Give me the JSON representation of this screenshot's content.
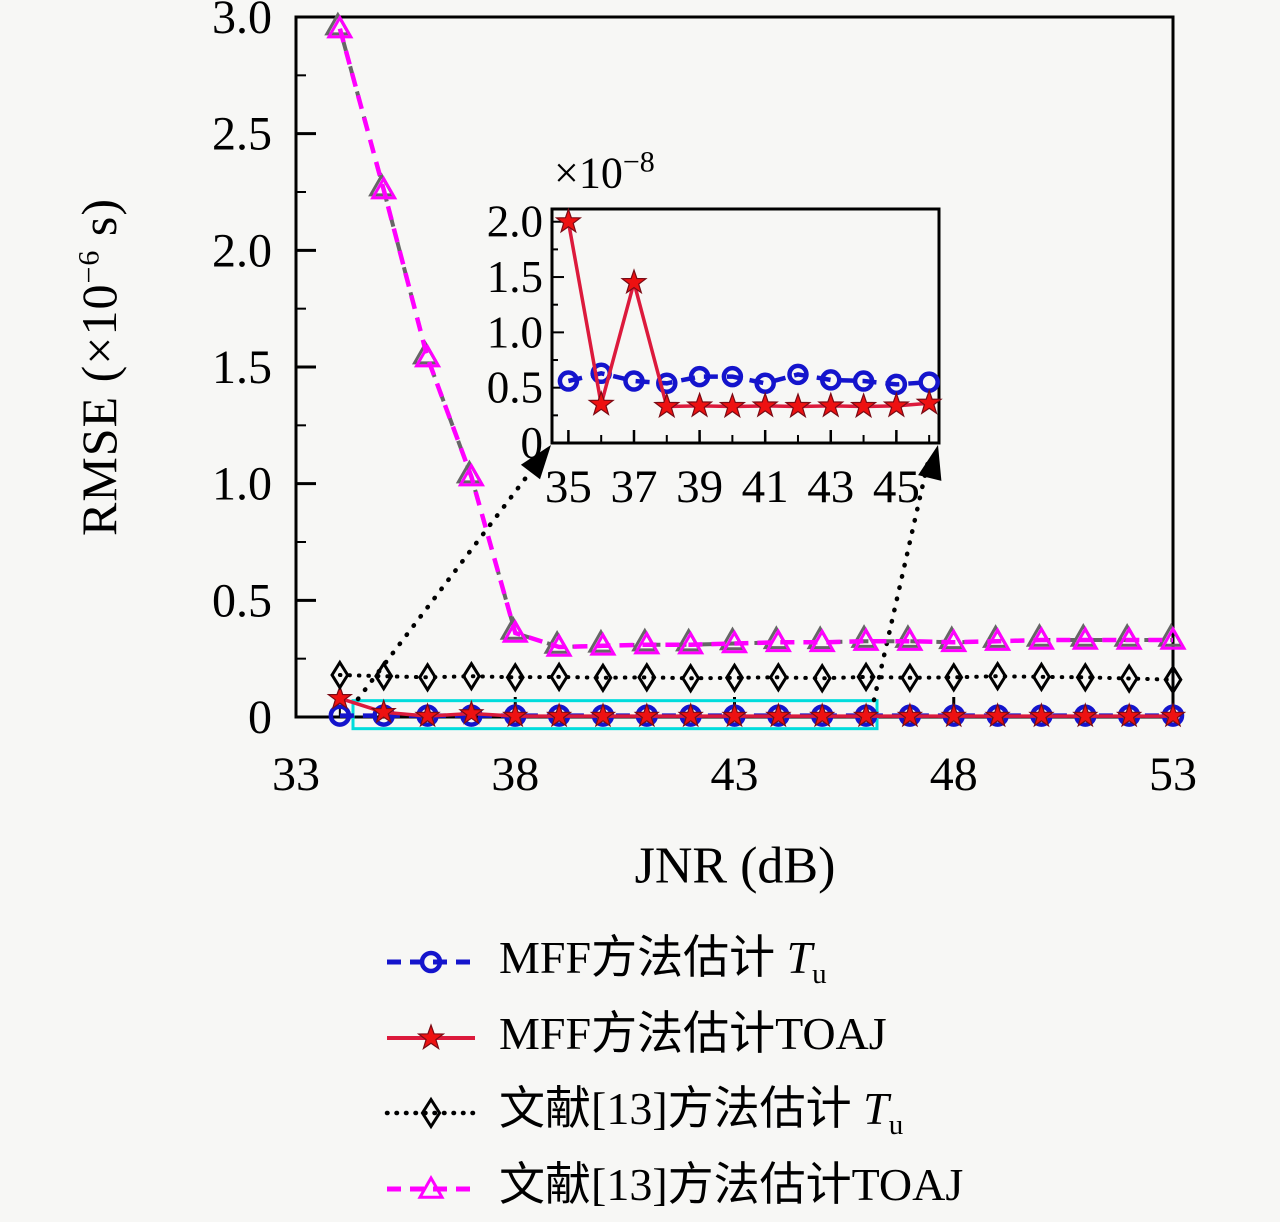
{
  "figure": {
    "background": "#f7f7f5",
    "axis_color": "#000000"
  },
  "chart_data": {
    "type": "line",
    "title": "",
    "xlabel": "JNR (dB)",
    "ylabel": {
      "pre": "RMSE (×10",
      "exp": "−6",
      "post": " s)"
    },
    "xlim": [
      33,
      53
    ],
    "ylim": [
      0,
      3
    ],
    "grid": "off",
    "x_ticks": {
      "values": [
        33,
        38,
        43,
        48,
        53
      ],
      "labels": [
        "33",
        "38",
        "43",
        "48",
        "53"
      ]
    },
    "y_ticks": {
      "values": [
        0,
        0.5,
        1,
        1.5,
        2,
        2.5,
        3
      ],
      "labels": [
        "0",
        "0.5",
        "1.0",
        "1.5",
        "2.0",
        "2.5",
        "3.0"
      ]
    },
    "x": [
      34,
      35,
      36,
      37,
      38,
      39,
      40,
      41,
      42,
      43,
      44,
      45,
      46,
      47,
      48,
      49,
      50,
      51,
      52,
      53
    ],
    "series": [
      {
        "name": "MFF方法估计Tu",
        "color": "#1414cc",
        "line": "dashed",
        "marker": "circle",
        "values": [
          0.006,
          0.006,
          0.006,
          0.006,
          0.006,
          0.006,
          0.006,
          0.006,
          0.006,
          0.006,
          0.006,
          0.006,
          0.006,
          0.006,
          0.006,
          0.006,
          0.006,
          0.006,
          0.006,
          0.006
        ]
      },
      {
        "name": "MFF方法估计TOAJ",
        "color": "#dc1a3c",
        "marker_fill": "#ee1111",
        "marker_edge": "#7a0a14",
        "line": "solid",
        "marker": "star",
        "values": [
          0.08,
          0.02,
          0.004,
          0.015,
          0.004,
          0.004,
          0.004,
          0.004,
          0.004,
          0.004,
          0.004,
          0.004,
          0.004,
          0.004,
          0.004,
          0.004,
          0.004,
          0.004,
          0.004,
          0.004
        ]
      },
      {
        "name": "文献[13]方法估计Tu",
        "color": "#000000",
        "line": "dotted",
        "marker": "diamond",
        "values": [
          0.18,
          0.175,
          0.17,
          0.175,
          0.17,
          0.172,
          0.168,
          0.17,
          0.166,
          0.168,
          0.17,
          0.166,
          0.172,
          0.168,
          0.17,
          0.175,
          0.172,
          0.17,
          0.165,
          0.16
        ]
      },
      {
        "name": "文献[13]方法估计TOAJ",
        "color": "#ff00ff",
        "shadow_color": "#666666",
        "line": "dashed",
        "marker": "triangle",
        "values": [
          2.95,
          2.26,
          1.54,
          1.03,
          0.36,
          0.3,
          0.305,
          0.31,
          0.31,
          0.315,
          0.32,
          0.32,
          0.325,
          0.325,
          0.32,
          0.325,
          0.33,
          0.33,
          0.33,
          0.33
        ]
      }
    ],
    "zoom_region": {
      "x1": 34.3,
      "x2": 46.25,
      "y1": -0.05,
      "y2": 0.07,
      "color": "#00dcdc"
    },
    "inset": {
      "scale": {
        "pre": "×10",
        "exp": "−8"
      },
      "xlim": [
        34.5,
        46.3
      ],
      "ylim": [
        0,
        2.115
      ],
      "x_ticks": {
        "values": [
          35,
          37,
          39,
          41,
          43,
          45
        ],
        "labels": [
          "35",
          "37",
          "39",
          "41",
          "43",
          "45"
        ]
      },
      "y_ticks": {
        "values": [
          0,
          0.5,
          1,
          1.5,
          2
        ],
        "labels": [
          "0",
          "0.5",
          "1.0",
          "1.5",
          "2.0"
        ]
      },
      "x": [
        35,
        36,
        37,
        38,
        39,
        40,
        41,
        42,
        43,
        44,
        45,
        46
      ],
      "series": [
        {
          "name": "MFF方法估计Tu",
          "color": "#1414cc",
          "line": "dashed",
          "marker": "circle",
          "values": [
            0.56,
            0.63,
            0.56,
            0.54,
            0.6,
            0.6,
            0.54,
            0.62,
            0.57,
            0.56,
            0.53,
            0.55
          ]
        },
        {
          "name": "MFF方法估计TOAJ",
          "color": "#dc1a3c",
          "marker_fill": "#ee1111",
          "marker_edge": "#7a0a14",
          "line": "solid",
          "marker": "star",
          "values": [
            2.0,
            0.35,
            1.45,
            0.33,
            0.335,
            0.33,
            0.335,
            0.33,
            0.335,
            0.33,
            0.335,
            0.36
          ]
        }
      ]
    },
    "legend": {
      "position": "below-axes",
      "items": [
        {
          "pre": "MFF方法估计",
          "var": "T",
          "sub": "u"
        },
        {
          "pre": "MFF方法估计TOAJ",
          "var": "",
          "sub": ""
        },
        {
          "pre": "文献[13]方法估计",
          "var": "T",
          "sub": "u"
        },
        {
          "pre": "文献[13]方法估计TOAJ",
          "var": "",
          "sub": ""
        }
      ]
    }
  }
}
